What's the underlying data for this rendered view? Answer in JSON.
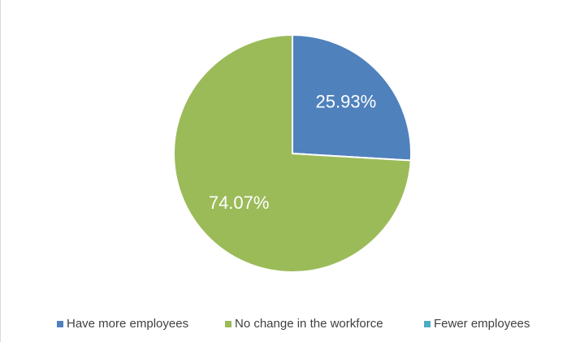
{
  "chart_data": {
    "type": "pie",
    "categories": [
      "Have more employees",
      "No change in the workforce",
      "Fewer employees"
    ],
    "values": [
      25.93,
      74.07,
      0
    ],
    "value_labels": [
      "25.93%",
      "74.07%",
      null
    ],
    "colors": [
      "#4f81bd",
      "#9bbb59",
      "#4bacc6"
    ],
    "legend": "bottom"
  }
}
